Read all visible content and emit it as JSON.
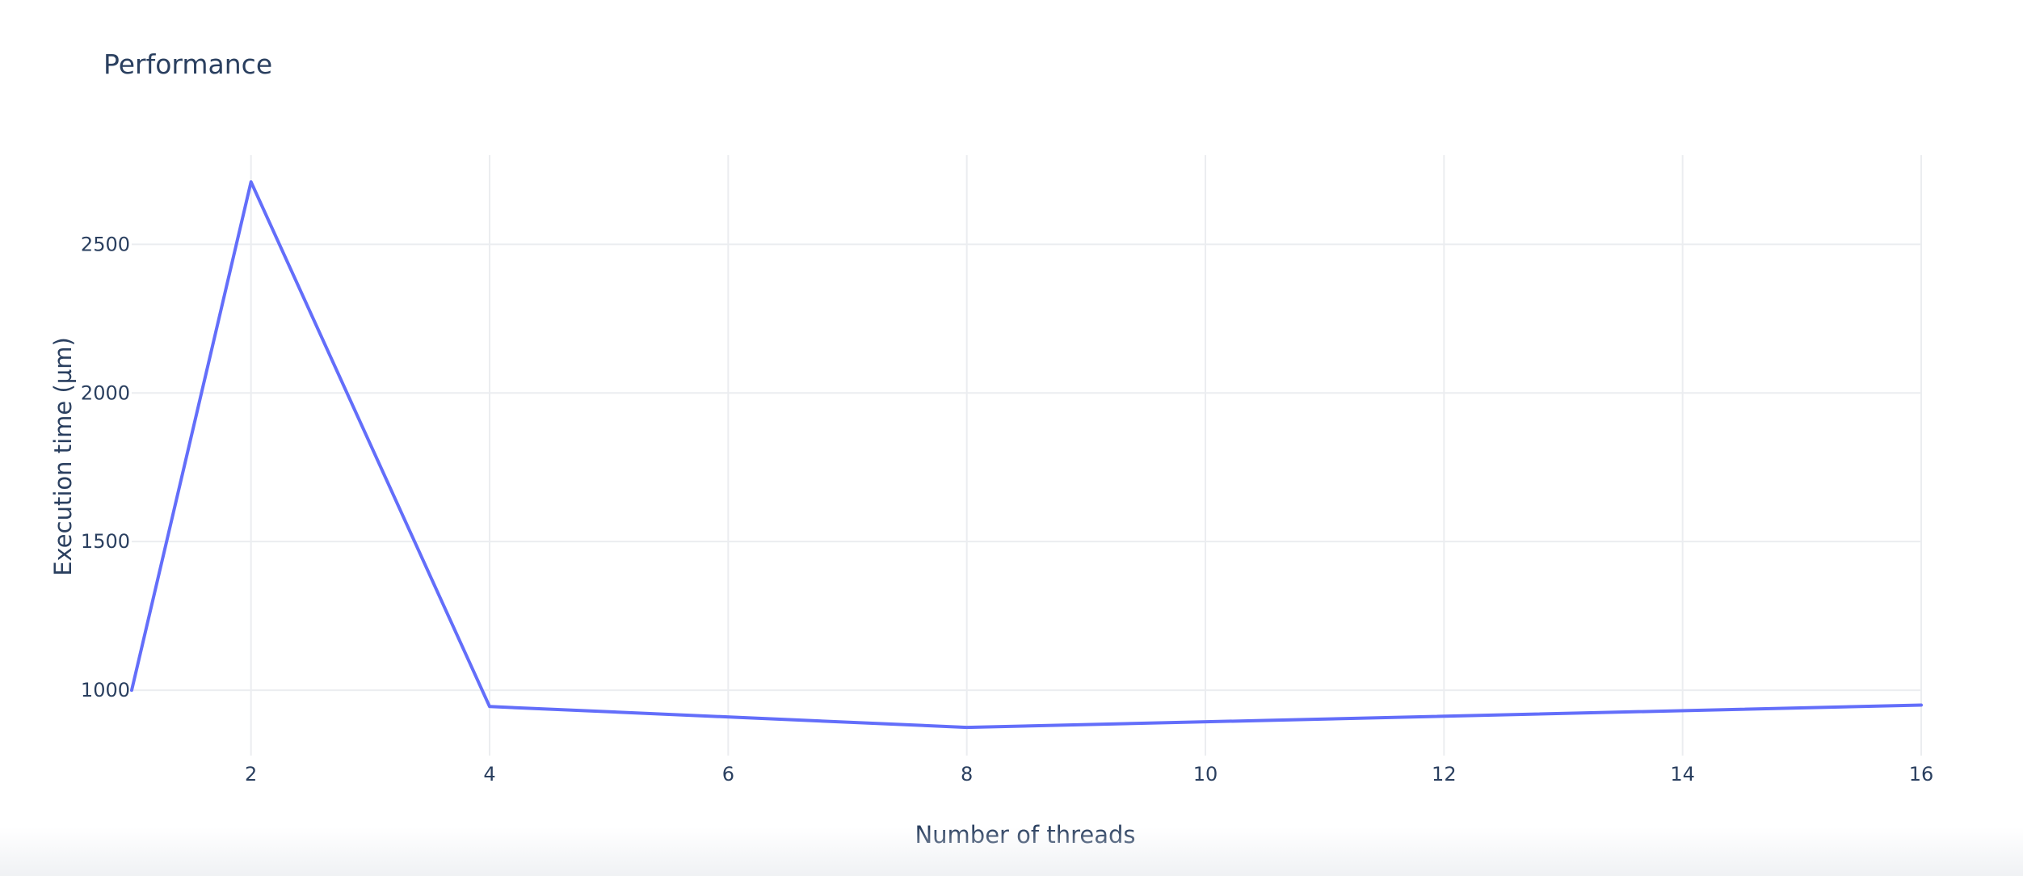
{
  "chart_data": {
    "type": "line",
    "title": "Performance",
    "xlabel": "Number of threads",
    "ylabel": "Execution time (µm)",
    "x": [
      1,
      2,
      4,
      8,
      16
    ],
    "series": [
      {
        "values": [
          1000,
          2710,
          945,
          875,
          950
        ],
        "color": "#636efa"
      }
    ],
    "xlim": [
      1,
      16
    ],
    "ylim": [
      780,
      2800
    ],
    "xticks": [
      2,
      4,
      6,
      8,
      10,
      12,
      14,
      16
    ],
    "yticks": [
      1000,
      1500,
      2000,
      2500
    ],
    "grid": true
  },
  "colors": {
    "text": "#2a3f5f",
    "grid": "#ebedf0",
    "background": "#ffffff"
  }
}
